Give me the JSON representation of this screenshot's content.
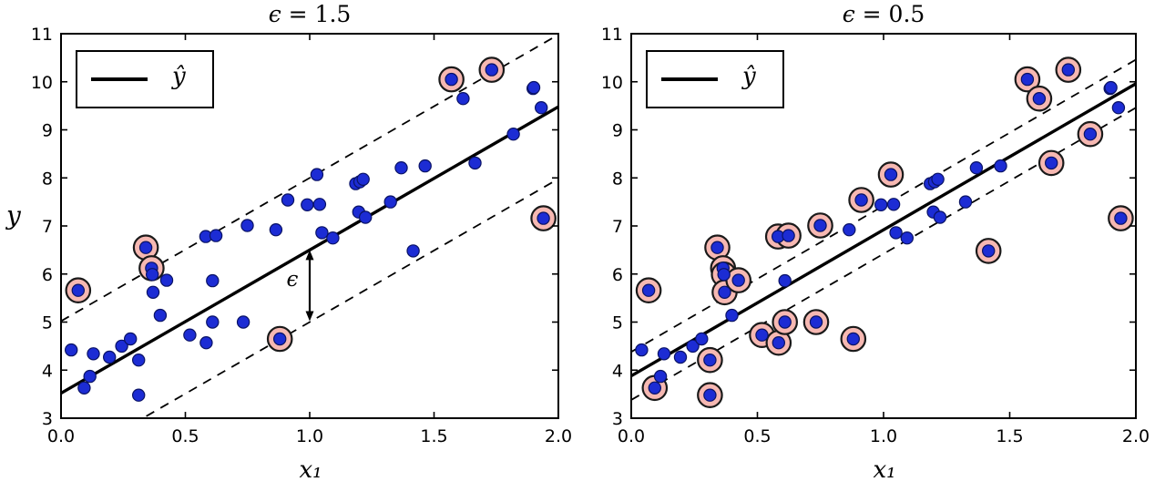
{
  "chart_data": {
    "type": "scatter",
    "description": "SVM regression fit with epsilon-insensitive margin, two panels sharing one dataset",
    "xlabel": "x₁",
    "ylabel": "y",
    "xlim": [
      0,
      2
    ],
    "ylim": [
      3,
      11
    ],
    "xtick_labels": [
      "0.0",
      "0.5",
      "1.0",
      "1.5",
      "2.0"
    ],
    "xtick_values": [
      0,
      0.5,
      1,
      1.5,
      2
    ],
    "ytick_labels": [
      "3",
      "4",
      "5",
      "6",
      "7",
      "8",
      "9",
      "10",
      "11"
    ],
    "ytick_values": [
      3,
      4,
      5,
      6,
      7,
      8,
      9,
      10,
      11
    ],
    "legend_label": "ŷ",
    "legend_position": "upper left",
    "grid": false,
    "points": [
      [
        0.041,
        4.42
      ],
      [
        0.069,
        5.66
      ],
      [
        0.093,
        3.63
      ],
      [
        0.116,
        3.87
      ],
      [
        0.13,
        4.34
      ],
      [
        0.195,
        4.27
      ],
      [
        0.244,
        4.5
      ],
      [
        0.279,
        4.65
      ],
      [
        0.312,
        4.21
      ],
      [
        0.312,
        3.48
      ],
      [
        0.341,
        6.55
      ],
      [
        0.364,
        6.12
      ],
      [
        0.367,
        5.99
      ],
      [
        0.37,
        5.62
      ],
      [
        0.399,
        5.14
      ],
      [
        0.425,
        5.87
      ],
      [
        0.518,
        4.73
      ],
      [
        0.582,
        6.78
      ],
      [
        0.584,
        4.57
      ],
      [
        0.609,
        5.0
      ],
      [
        0.609,
        5.86
      ],
      [
        0.623,
        6.8
      ],
      [
        0.733,
        5.0
      ],
      [
        0.749,
        7.01
      ],
      [
        0.864,
        6.92
      ],
      [
        0.88,
        4.65
      ],
      [
        0.912,
        7.54
      ],
      [
        0.99,
        7.44
      ],
      [
        1.029,
        8.07
      ],
      [
        1.04,
        7.45
      ],
      [
        1.049,
        6.86
      ],
      [
        1.093,
        6.75
      ],
      [
        1.185,
        7.88
      ],
      [
        1.197,
        7.29
      ],
      [
        1.202,
        7.92
      ],
      [
        1.215,
        7.97
      ],
      [
        1.224,
        7.18
      ],
      [
        1.325,
        7.5
      ],
      [
        1.368,
        8.21
      ],
      [
        1.416,
        6.48
      ],
      [
        1.464,
        8.25
      ],
      [
        1.57,
        10.05
      ],
      [
        1.617,
        9.65
      ],
      [
        1.665,
        8.31
      ],
      [
        1.732,
        10.25
      ],
      [
        1.819,
        8.91
      ],
      [
        1.898,
        9.86
      ],
      [
        1.901,
        9.88
      ],
      [
        1.931,
        9.46
      ],
      [
        1.94,
        7.16
      ]
    ],
    "panels": [
      {
        "title": "ϵ = 1.5",
        "title_symbol": "ϵ",
        "title_rest": " = 1.5",
        "epsilon": 1.5,
        "regression_line": {
          "intercept": 3.52,
          "slope": 2.98
        },
        "support_vector_indices": [
          1,
          10,
          11,
          25,
          41,
          44,
          49
        ],
        "show_ylabel": true,
        "annotation": {
          "text": "ϵ",
          "arrow_x": 1.0,
          "arrow_y_from": 6.5,
          "arrow_y_to": 5.02,
          "label_x": 0.93,
          "label_y": 5.85
        }
      },
      {
        "title": "ϵ = 0.5",
        "title_symbol": "ϵ",
        "title_rest": " = 0.5",
        "epsilon": 0.5,
        "regression_line": {
          "intercept": 3.88,
          "slope": 3.04
        },
        "support_vector_indices": [
          1,
          2,
          8,
          9,
          10,
          11,
          12,
          13,
          15,
          16,
          17,
          18,
          19,
          21,
          22,
          23,
          25,
          26,
          28,
          39,
          41,
          42,
          43,
          44,
          45,
          49
        ],
        "show_ylabel": false,
        "annotation": null
      }
    ],
    "colors": {
      "point_fill": "#1c2cd4",
      "point_edge": "#0a1366",
      "support_fill": "#f6b8b2",
      "support_edge": "#1a1a1a",
      "line_color": "#000000",
      "background": "#ffffff"
    }
  }
}
